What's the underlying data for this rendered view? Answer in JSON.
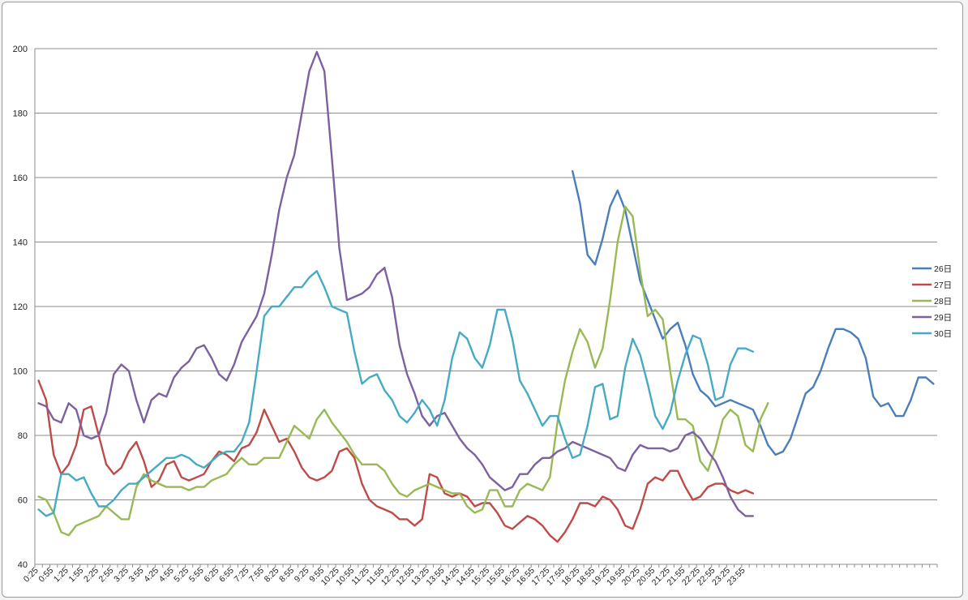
{
  "chart_data": {
    "type": "line",
    "ylim": [
      40,
      200
    ],
    "yticks": [
      40,
      60,
      80,
      100,
      120,
      140,
      160,
      180,
      200
    ],
    "grid": true,
    "legend_position": "right",
    "x_tick_labels": [
      "0:25",
      "0:55",
      "1:25",
      "1:55",
      "2:25",
      "2:55",
      "3:25",
      "3:55",
      "4:25",
      "4:55",
      "5:25",
      "5:55",
      "6:25",
      "6:55",
      "7:25",
      "7:55",
      "8:25",
      "8:55",
      "9:25",
      "9:55",
      "10:25",
      "10:55",
      "11:25",
      "11:55",
      "12:25",
      "12:55",
      "13:25",
      "13:55",
      "14:25",
      "14:55",
      "15:25",
      "15:55",
      "16:25",
      "16:55",
      "17:25",
      "17:55",
      "18:25",
      "18:55",
      "19:25",
      "19:55",
      "20:25",
      "20:55",
      "21:25",
      "21:55",
      "22:25",
      "22:55",
      "23:25",
      "23:55"
    ],
    "series": [
      {
        "name": "26日",
        "color": "#4a7ebb",
        "values": [
          null,
          null,
          null,
          null,
          null,
          null,
          null,
          null,
          null,
          null,
          null,
          null,
          null,
          null,
          null,
          null,
          null,
          null,
          null,
          null,
          null,
          null,
          null,
          null,
          null,
          null,
          null,
          null,
          null,
          null,
          null,
          null,
          null,
          null,
          null,
          null,
          null,
          null,
          null,
          null,
          null,
          null,
          null,
          null,
          null,
          null,
          null,
          null,
          null,
          null,
          null,
          null,
          null,
          null,
          null,
          null,
          null,
          null,
          null,
          null,
          null,
          null,
          null,
          null,
          null,
          null,
          null,
          null,
          null,
          null,
          null,
          162,
          152,
          136,
          133,
          141,
          151,
          156,
          150,
          139,
          128,
          122,
          116,
          110,
          113,
          115,
          108,
          99,
          94,
          92,
          89,
          90,
          91,
          90,
          89,
          88,
          83,
          77,
          74,
          75,
          79,
          86,
          93,
          95,
          100,
          107,
          113,
          113,
          112,
          110,
          104,
          92,
          89,
          90,
          86,
          86,
          91,
          98,
          98,
          96
        ]
      },
      {
        "name": "27日",
        "color": "#be4b48",
        "values": [
          97,
          91,
          74,
          68,
          71,
          77,
          88,
          89,
          80,
          71,
          68,
          70,
          75,
          78,
          72,
          64,
          66,
          71,
          72,
          67,
          66,
          67,
          68,
          72,
          75,
          74,
          72,
          76,
          77,
          81,
          88,
          83,
          78,
          79,
          75,
          70,
          67,
          66,
          67,
          69,
          75,
          76,
          73,
          65,
          60,
          58,
          57,
          56,
          54,
          54,
          52,
          54,
          68,
          67,
          62,
          61,
          62,
          61,
          58,
          59,
          59,
          56,
          52,
          51,
          53,
          55,
          54,
          52,
          49,
          47,
          50,
          54,
          59,
          59,
          58,
          61,
          60,
          57,
          52,
          51,
          57,
          65,
          67,
          66,
          69,
          69,
          64,
          60,
          61,
          64,
          65,
          65,
          63,
          62,
          63,
          62
        ]
      },
      {
        "name": "28日",
        "color": "#98b954",
        "values": [
          61,
          60,
          56,
          50,
          49,
          52,
          53,
          54,
          55,
          58,
          56,
          54,
          54,
          64,
          68,
          66,
          65,
          64,
          64,
          64,
          63,
          64,
          64,
          66,
          67,
          68,
          71,
          73,
          71,
          71,
          73,
          73,
          73,
          78,
          83,
          81,
          79,
          85,
          88,
          84,
          81,
          78,
          74,
          71,
          71,
          71,
          69,
          65,
          62,
          61,
          63,
          64,
          65,
          64,
          63,
          62,
          62,
          58,
          56,
          57,
          63,
          63,
          58,
          58,
          63,
          65,
          64,
          63,
          67,
          84,
          97,
          106,
          113,
          109,
          101,
          107,
          122,
          140,
          151,
          148,
          131,
          117,
          119,
          116,
          100,
          85,
          85,
          83,
          72,
          69,
          76,
          85,
          88,
          86,
          77,
          75,
          85,
          90
        ]
      },
      {
        "name": "29日",
        "color": "#7d60a0",
        "values": [
          90,
          89,
          85,
          84,
          90,
          88,
          80,
          79,
          80,
          87,
          99,
          102,
          100,
          91,
          84,
          91,
          93,
          92,
          98,
          101,
          103,
          107,
          108,
          104,
          99,
          97,
          102,
          109,
          113,
          117,
          124,
          136,
          150,
          160,
          167,
          180,
          193,
          199,
          193,
          166,
          138,
          122,
          123,
          124,
          126,
          130,
          132,
          123,
          108,
          99,
          93,
          86,
          83,
          86,
          87,
          83,
          79,
          76,
          74,
          71,
          67,
          65,
          63,
          64,
          68,
          68,
          71,
          73,
          73,
          75,
          76,
          78,
          77,
          76,
          75,
          74,
          73,
          70,
          69,
          74,
          77,
          76,
          76,
          76,
          75,
          76,
          80,
          81,
          79,
          75,
          72,
          67,
          61,
          57,
          55,
          55
        ]
      },
      {
        "name": "30日",
        "color": "#46aac5",
        "values": [
          57,
          55,
          56,
          68,
          68,
          66,
          67,
          62,
          58,
          58,
          60,
          63,
          65,
          65,
          67,
          69,
          71,
          73,
          73,
          74,
          73,
          71,
          70,
          72,
          74,
          75,
          75,
          78,
          84,
          100,
          117,
          120,
          120,
          123,
          126,
          126,
          129,
          131,
          126,
          120,
          119,
          118,
          106,
          96,
          98,
          99,
          94,
          91,
          86,
          84,
          87,
          91,
          88,
          83,
          91,
          104,
          112,
          110,
          104,
          101,
          108,
          119,
          119,
          110,
          97,
          93,
          88,
          83,
          86,
          86,
          79,
          73,
          74,
          83,
          95,
          96,
          85,
          86,
          101,
          110,
          105,
          96,
          86,
          82,
          87,
          97,
          105,
          111,
          110,
          102,
          91,
          92,
          102,
          107,
          107,
          106
        ]
      }
    ]
  }
}
